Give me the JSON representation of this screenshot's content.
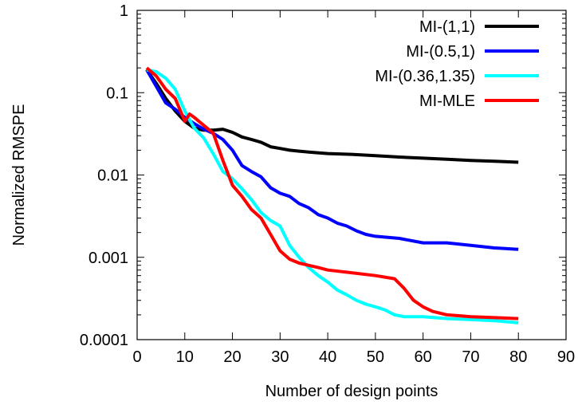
{
  "chart_data": {
    "type": "line",
    "title": "",
    "xlabel": "Number of design points",
    "ylabel": "Normalized RMSPE",
    "xlim": [
      0,
      90
    ],
    "ylim": [
      0.0001,
      1
    ],
    "yscale": "log",
    "grid": false,
    "legend_position": "top-right",
    "x_ticks": [
      0,
      10,
      20,
      30,
      40,
      50,
      60,
      70,
      80,
      90
    ],
    "x_tick_labels": [
      "0",
      "10",
      "20",
      "30",
      "40",
      "50",
      "60",
      "70",
      "80",
      "90"
    ],
    "y_ticks": [
      0.0001,
      0.001,
      0.01,
      0.1,
      1
    ],
    "y_tick_labels": [
      "0.0001",
      "0.001",
      "0.01",
      "0.1",
      "1"
    ],
    "series": [
      {
        "name": "MI-(1,1)",
        "color": "#000000",
        "points": [
          [
            2,
            0.19
          ],
          [
            4,
            0.13
          ],
          [
            6,
            0.085
          ],
          [
            8,
            0.06
          ],
          [
            10,
            0.045
          ],
          [
            12,
            0.037
          ],
          [
            14,
            0.035
          ],
          [
            16,
            0.035
          ],
          [
            18,
            0.036
          ],
          [
            20,
            0.033
          ],
          [
            22,
            0.029
          ],
          [
            24,
            0.027
          ],
          [
            26,
            0.025
          ],
          [
            28,
            0.022
          ],
          [
            30,
            0.021
          ],
          [
            32,
            0.02
          ],
          [
            34,
            0.0195
          ],
          [
            36,
            0.019
          ],
          [
            40,
            0.0182
          ],
          [
            45,
            0.0178
          ],
          [
            50,
            0.0172
          ],
          [
            55,
            0.0165
          ],
          [
            60,
            0.016
          ],
          [
            65,
            0.0155
          ],
          [
            70,
            0.015
          ],
          [
            75,
            0.0147
          ],
          [
            80,
            0.0143
          ]
        ]
      },
      {
        "name": "MI-(0.5,1)",
        "color": "#0000ff",
        "points": [
          [
            2,
            0.19
          ],
          [
            4,
            0.12
          ],
          [
            6,
            0.075
          ],
          [
            8,
            0.063
          ],
          [
            10,
            0.05
          ],
          [
            12,
            0.042
          ],
          [
            14,
            0.036
          ],
          [
            16,
            0.032
          ],
          [
            18,
            0.027
          ],
          [
            20,
            0.02
          ],
          [
            22,
            0.013
          ],
          [
            24,
            0.011
          ],
          [
            26,
            0.0095
          ],
          [
            28,
            0.007
          ],
          [
            30,
            0.006
          ],
          [
            32,
            0.0055
          ],
          [
            34,
            0.0045
          ],
          [
            36,
            0.004
          ],
          [
            38,
            0.0033
          ],
          [
            40,
            0.003
          ],
          [
            42,
            0.0026
          ],
          [
            44,
            0.0024
          ],
          [
            46,
            0.0021
          ],
          [
            48,
            0.0019
          ],
          [
            50,
            0.0018
          ],
          [
            55,
            0.0017
          ],
          [
            60,
            0.0015
          ],
          [
            65,
            0.0015
          ],
          [
            70,
            0.0014
          ],
          [
            75,
            0.0013
          ],
          [
            80,
            0.00125
          ]
        ]
      },
      {
        "name": "MI-(0.36,1.35)",
        "color": "#00ffff",
        "points": [
          [
            2,
            0.19
          ],
          [
            4,
            0.18
          ],
          [
            6,
            0.15
          ],
          [
            8,
            0.11
          ],
          [
            10,
            0.06
          ],
          [
            12,
            0.037
          ],
          [
            14,
            0.028
          ],
          [
            16,
            0.018
          ],
          [
            18,
            0.011
          ],
          [
            20,
            0.009
          ],
          [
            22,
            0.0068
          ],
          [
            24,
            0.005
          ],
          [
            26,
            0.0035
          ],
          [
            28,
            0.0028
          ],
          [
            30,
            0.0024
          ],
          [
            32,
            0.0014
          ],
          [
            34,
            0.001
          ],
          [
            36,
            0.00075
          ],
          [
            38,
            0.0006
          ],
          [
            40,
            0.0005
          ],
          [
            42,
            0.0004
          ],
          [
            44,
            0.00035
          ],
          [
            46,
            0.0003
          ],
          [
            48,
            0.00027
          ],
          [
            50,
            0.00025
          ],
          [
            52,
            0.00023
          ],
          [
            54,
            0.0002
          ],
          [
            56,
            0.00019
          ],
          [
            60,
            0.00019
          ],
          [
            65,
            0.00018
          ],
          [
            70,
            0.000175
          ],
          [
            75,
            0.00017
          ],
          [
            80,
            0.00016
          ]
        ]
      },
      {
        "name": "MI-MLE",
        "color": "#ff0000",
        "points": [
          [
            2,
            0.2
          ],
          [
            4,
            0.16
          ],
          [
            6,
            0.11
          ],
          [
            8,
            0.085
          ],
          [
            10,
            0.045
          ],
          [
            11,
            0.055
          ],
          [
            12,
            0.05
          ],
          [
            14,
            0.04
          ],
          [
            16,
            0.032
          ],
          [
            18,
            0.015
          ],
          [
            20,
            0.0075
          ],
          [
            22,
            0.0055
          ],
          [
            24,
            0.0038
          ],
          [
            26,
            0.003
          ],
          [
            28,
            0.0019
          ],
          [
            30,
            0.0012
          ],
          [
            32,
            0.00095
          ],
          [
            34,
            0.00085
          ],
          [
            36,
            0.0008
          ],
          [
            38,
            0.00075
          ],
          [
            40,
            0.0007
          ],
          [
            45,
            0.00065
          ],
          [
            50,
            0.0006
          ],
          [
            54,
            0.00055
          ],
          [
            56,
            0.00042
          ],
          [
            58,
            0.0003
          ],
          [
            60,
            0.00025
          ],
          [
            62,
            0.00022
          ],
          [
            65,
            0.0002
          ],
          [
            70,
            0.00019
          ],
          [
            75,
            0.000185
          ],
          [
            80,
            0.00018
          ]
        ]
      }
    ]
  }
}
